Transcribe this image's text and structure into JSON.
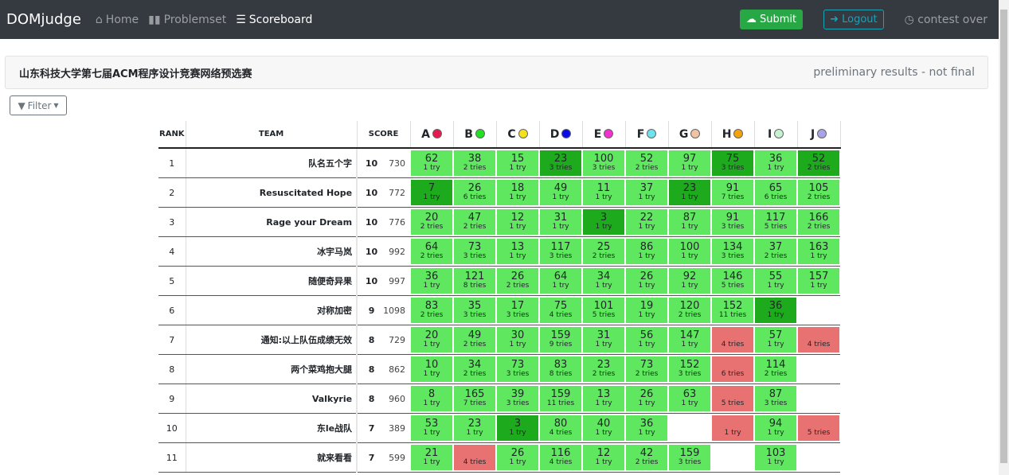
{
  "nav": {
    "brand": "DOMjudge",
    "home": "Home",
    "problemset": "Problemset",
    "scoreboard": "Scoreboard",
    "submit": "Submit",
    "logout": "Logout",
    "status": "contest over"
  },
  "card": {
    "title": "山东科技大学第七届ACM程序设计竞赛网络预选赛",
    "status": "preliminary results - not final"
  },
  "filter": "Filter",
  "headers": {
    "rank": "RANK",
    "team": "TEAM",
    "score": "SCORE"
  },
  "problems": [
    {
      "l": "A",
      "c": "#e8194f"
    },
    {
      "l": "B",
      "c": "#22e022"
    },
    {
      "l": "C",
      "c": "#f5e11a"
    },
    {
      "l": "D",
      "c": "#0b0bea"
    },
    {
      "l": "E",
      "c": "#f22fcf"
    },
    {
      "l": "F",
      "c": "#6ee3f0"
    },
    {
      "l": "G",
      "c": "#f2c2a4"
    },
    {
      "l": "H",
      "c": "#f2a20c"
    },
    {
      "l": "I",
      "c": "#c6f2d2"
    },
    {
      "l": "J",
      "c": "#a9a2e8"
    }
  ],
  "rows": [
    {
      "rank": "1",
      "team": "队名五个字",
      "solved": "10",
      "pts": "730",
      "cells": [
        "s|62|1 try",
        "s|38|2 tries",
        "s|15|1 try",
        "f|23|3 tries",
        "s|100|3 tries",
        "s|52|2 tries",
        "s|97|1 try",
        "f|75|3 tries",
        "s|36|1 try",
        "f|52|2 tries"
      ]
    },
    {
      "rank": "2",
      "team": "Resuscitated Hope",
      "solved": "10",
      "pts": "772",
      "cells": [
        "f|7|1 try",
        "s|26|6 tries",
        "s|18|1 try",
        "s|49|1 try",
        "s|11|1 try",
        "s|37|1 try",
        "f|23|1 try",
        "s|91|7 tries",
        "s|65|6 tries",
        "s|105|2 tries"
      ]
    },
    {
      "rank": "3",
      "team": "Rage your Dream",
      "solved": "10",
      "pts": "776",
      "cells": [
        "s|20|2 tries",
        "s|47|2 tries",
        "s|12|1 try",
        "s|31|1 try",
        "f|3|1 try",
        "s|22|1 try",
        "s|87|1 try",
        "s|91|3 tries",
        "s|117|5 tries",
        "s|166|2 tries"
      ]
    },
    {
      "rank": "4",
      "team": "冰宇马岚",
      "solved": "10",
      "pts": "992",
      "cells": [
        "s|64|2 tries",
        "s|73|3 tries",
        "s|13|1 try",
        "s|117|3 tries",
        "s|25|2 tries",
        "s|86|1 try",
        "s|100|1 try",
        "s|134|3 tries",
        "s|37|2 tries",
        "s|163|1 try"
      ]
    },
    {
      "rank": "5",
      "team": "随便奇异果",
      "solved": "10",
      "pts": "997",
      "cells": [
        "s|36|1 try",
        "s|121|8 tries",
        "s|26|2 tries",
        "s|64|1 try",
        "s|34|1 try",
        "s|26|1 try",
        "s|92|1 try",
        "s|146|5 tries",
        "s|55|1 try",
        "s|157|1 try"
      ]
    },
    {
      "rank": "6",
      "team": "对称加密",
      "solved": "9",
      "pts": "1098",
      "cells": [
        "s|83|2 tries",
        "s|35|3 tries",
        "s|17|3 tries",
        "s|75|4 tries",
        "s|101|5 tries",
        "s|19|1 try",
        "s|120|2 tries",
        "s|152|11 tries",
        "f|36|1 try",
        "e||"
      ]
    },
    {
      "rank": "7",
      "team": "通知:以上队伍成绩无效",
      "solved": "8",
      "pts": "729",
      "cells": [
        "s|20|1 try",
        "s|49|2 tries",
        "s|30|1 try",
        "s|159|9 tries",
        "s|31|1 try",
        "s|56|1 try",
        "s|147|1 try",
        "x||4 tries",
        "s|57|1 try",
        "x||4 tries"
      ]
    },
    {
      "rank": "8",
      "team": "两个菜鸡抱大腿",
      "solved": "8",
      "pts": "862",
      "cells": [
        "s|10|1 try",
        "s|34|2 tries",
        "s|73|3 tries",
        "s|83|8 tries",
        "s|23|2 tries",
        "s|73|2 tries",
        "s|152|3 tries",
        "x||6 tries",
        "s|114|2 tries",
        "e||"
      ]
    },
    {
      "rank": "9",
      "team": "Valkyrie",
      "solved": "8",
      "pts": "960",
      "cells": [
        "s|8|1 try",
        "s|165|7 tries",
        "s|39|3 tries",
        "s|159|11 tries",
        "s|13|1 try",
        "s|26|1 try",
        "s|63|1 try",
        "x||5 tries",
        "s|87|3 tries",
        "e||"
      ]
    },
    {
      "rank": "10",
      "team": "东le战队",
      "solved": "7",
      "pts": "389",
      "cells": [
        "s|53|1 try",
        "s|23|1 try",
        "f|3|1 try",
        "s|80|4 tries",
        "s|40|1 try",
        "s|36|1 try",
        "e||",
        "x||1 try",
        "s|94|1 try",
        "x||5 tries"
      ]
    },
    {
      "rank": "11",
      "team": "就来看看",
      "solved": "7",
      "pts": "599",
      "cells": [
        "s|21|1 try",
        "x||4 tries",
        "s|26|1 try",
        "s|116|4 tries",
        "s|12|1 try",
        "s|42|2 tries",
        "s|159|3 tries",
        "e||",
        "s|103|1 try",
        "e||"
      ]
    }
  ]
}
